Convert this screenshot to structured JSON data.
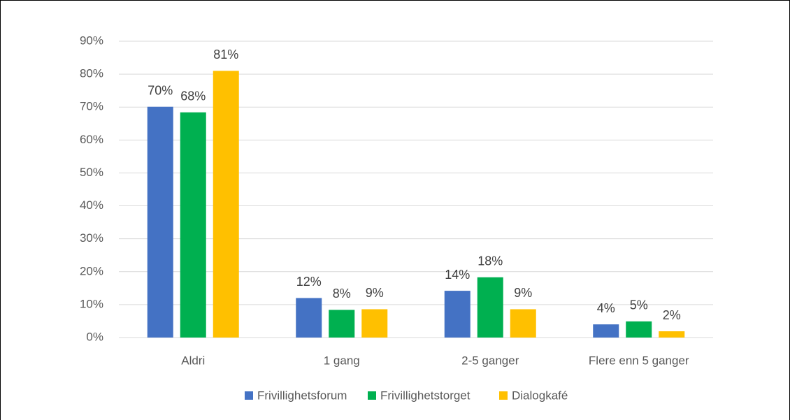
{
  "chart_data": {
    "type": "bar",
    "categories": [
      "Aldri",
      "1 gang",
      "2-5 ganger",
      "Flere enn 5 ganger"
    ],
    "series": [
      {
        "name": "Frivillighetsforum",
        "color": "#4472c4",
        "values": [
          70.1,
          12.0,
          14.2,
          4.0
        ],
        "value_labels": [
          "70%",
          "12%",
          "14%",
          "4%"
        ]
      },
      {
        "name": "Frivillighetstorget",
        "color": "#00b050",
        "values": [
          68.4,
          8.4,
          18.3,
          4.9
        ],
        "value_labels": [
          "68%",
          "8%",
          "18%",
          "5%"
        ]
      },
      {
        "name": "Dialogkafé",
        "color": "#ffc000",
        "values": [
          81.0,
          8.6,
          8.6,
          1.9
        ],
        "value_labels": [
          "81%",
          "9%",
          "9%",
          "2%"
        ]
      }
    ],
    "ylim": [
      0,
      90
    ],
    "yticks": [
      {
        "value": 0,
        "label": "0%"
      },
      {
        "value": 10,
        "label": "10%"
      },
      {
        "value": 20,
        "label": "20%"
      },
      {
        "value": 30,
        "label": "30%"
      },
      {
        "value": 40,
        "label": "40%"
      },
      {
        "value": 50,
        "label": "50%"
      },
      {
        "value": 60,
        "label": "60%"
      },
      {
        "value": 70,
        "label": "70%"
      },
      {
        "value": 80,
        "label": "80%"
      },
      {
        "value": 90,
        "label": "90%"
      }
    ],
    "grid": true,
    "legend": "bottom"
  }
}
